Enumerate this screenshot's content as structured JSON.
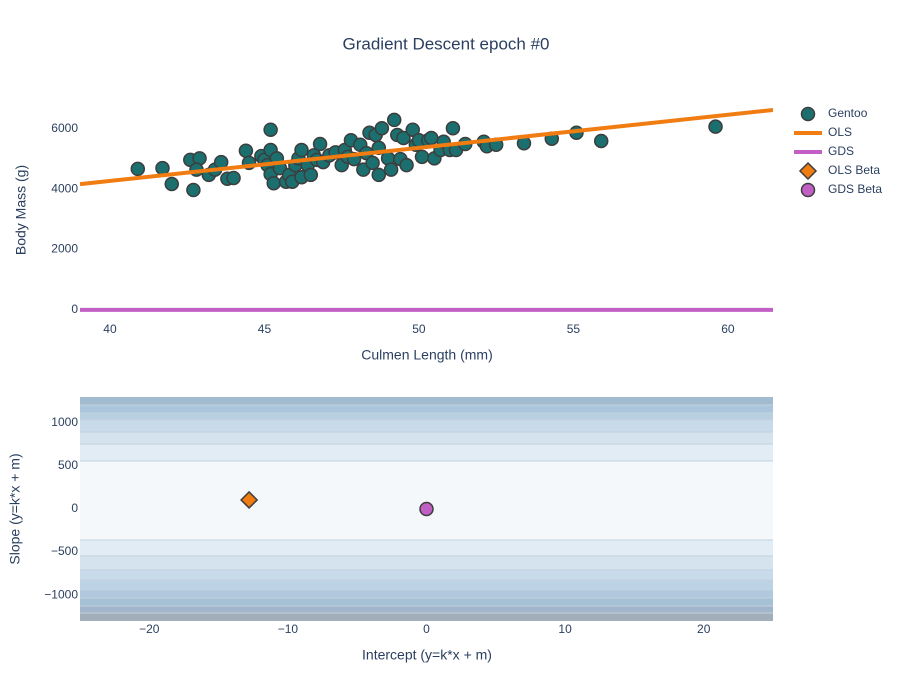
{
  "chart_data": [
    {
      "type": "scatter",
      "title": "Gradient Descent epoch #0",
      "x_label": "Culmen Length (mm)",
      "y_label": "Body Mass (g)",
      "xlim": [
        39.03,
        61.46
      ],
      "ylim": [
        -270,
        6960
      ],
      "xticks": [
        40,
        45,
        50,
        55,
        60
      ],
      "yticks": [
        0,
        2000,
        4000,
        6000
      ],
      "grid": false,
      "series": [
        {
          "name": "Gentoo",
          "mode": "markers",
          "marker": "circle",
          "color": "#1b6f6f",
          "x": [
            40.9,
            41.7,
            42.0,
            42.6,
            42.7,
            42.9,
            42.8,
            43.2,
            43.4,
            43.6,
            43.8,
            44.0,
            44.4,
            44.5,
            44.9,
            45.0,
            45.2,
            45.2,
            45.1,
            45.2,
            45.3,
            45.4,
            45.5,
            45.7,
            45.8,
            45.9,
            46.0,
            46.1,
            46.2,
            46.2,
            46.4,
            46.5,
            46.6,
            46.7,
            46.8,
            46.9,
            47.1,
            47.3,
            47.5,
            47.6,
            47.7,
            47.8,
            47.9,
            48.1,
            48.2,
            48.3,
            48.4,
            48.5,
            48.6,
            48.7,
            48.7,
            48.8,
            49.0,
            49.1,
            49.2,
            49.3,
            49.4,
            49.5,
            49.6,
            49.8,
            49.9,
            50.0,
            50.1,
            50.3,
            50.4,
            50.5,
            50.7,
            50.8,
            51.0,
            51.1,
            51.2,
            51.5,
            52.1,
            52.2,
            52.5,
            53.4,
            54.3,
            55.1,
            55.9,
            59.6
          ],
          "values": [
            4675,
            4700,
            4175,
            4975,
            3975,
            5025,
            4650,
            4475,
            4650,
            4900,
            4350,
            4375,
            5275,
            4875,
            5100,
            4975,
            5975,
            5300,
            4800,
            4500,
            4200,
            5025,
            4700,
            4250,
            4475,
            4250,
            4800,
            5025,
            5300,
            4400,
            4800,
            4475,
            5125,
            4975,
            5500,
            4900,
            5125,
            5225,
            4800,
            5300,
            5075,
            5625,
            5000,
            5475,
            4650,
            5200,
            5875,
            4875,
            5800,
            4475,
            5375,
            6025,
            5025,
            4650,
            6300,
            5800,
            5000,
            5700,
            4800,
            5975,
            5475,
            5625,
            5075,
            5625,
            5700,
            5025,
            5300,
            5575,
            5300,
            6025,
            5300,
            5500,
            5575,
            5425,
            5475,
            5525,
            5675,
            5875,
            5600,
            6075
          ]
        },
        {
          "name": "OLS",
          "mode": "lines",
          "color": "#f07c12",
          "x": [
            39.03,
            61.46
          ],
          "values": [
            4170,
            6630
          ]
        },
        {
          "name": "GDS",
          "mode": "lines",
          "color": "#c25fc4",
          "x": [
            39.03,
            61.46
          ],
          "values": [
            0,
            0
          ]
        }
      ]
    },
    {
      "type": "scatter",
      "x_label": "Intercept (y=k*x + m)",
      "y_label": "Slope (y=k*x + m)",
      "xlim": [
        -25,
        25
      ],
      "ylim": [
        -1300,
        1300
      ],
      "xticks": [
        {
          "value": -20,
          "label": "−20"
        },
        {
          "value": -10,
          "label": "−10"
        },
        0,
        10,
        20
      ],
      "yticks": [
        {
          "value": -1000,
          "label": "−1000"
        },
        {
          "value": -500,
          "label": "−500"
        },
        0,
        500,
        1000
      ],
      "grid": false,
      "series": [
        {
          "name": "OLS Beta",
          "mode": "markers",
          "marker": "diamond",
          "color": "#f07c12",
          "x": [
            -12.8
          ],
          "values": [
            105
          ]
        },
        {
          "name": "GDS Beta",
          "mode": "markers",
          "marker": "circle",
          "color": "#c25fc4",
          "x": [
            0
          ],
          "values": [
            0
          ]
        }
      ]
    }
  ]
}
